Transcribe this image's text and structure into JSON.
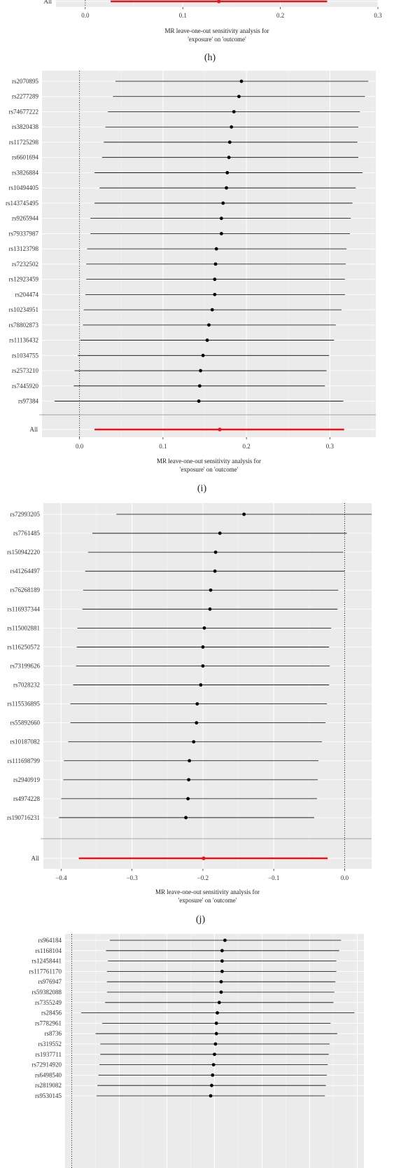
{
  "chart_data": [
    {
      "type": "forest",
      "caption": "(h)",
      "rows": [],
      "all": {
        "label": "All",
        "est": 0.137,
        "lo": 0.026,
        "hi": 0.248
      },
      "xlim": [
        -0.03,
        0.3
      ],
      "xticks": [
        0.0,
        0.1,
        0.2,
        0.3
      ],
      "xtick_labels": [
        "0.0",
        "0.1",
        "0.2",
        "0.3"
      ],
      "xlabel_line1": "MR leave-one-out sensitivity analysis for",
      "xlabel_line2": "'exposure' on 'outcome'",
      "grid": true
    },
    {
      "type": "forest",
      "caption": "(i)",
      "rows": [
        {
          "label": "rs2070895",
          "est": 0.194,
          "lo": 0.043,
          "hi": 0.346
        },
        {
          "label": "rs2277289",
          "est": 0.191,
          "lo": 0.04,
          "hi": 0.342
        },
        {
          "label": "rs74677222",
          "est": 0.185,
          "lo": 0.034,
          "hi": 0.336
        },
        {
          "label": "rs3820438",
          "est": 0.182,
          "lo": 0.031,
          "hi": 0.334
        },
        {
          "label": "rs11725298",
          "est": 0.18,
          "lo": 0.029,
          "hi": 0.333
        },
        {
          "label": "rs6601694",
          "est": 0.179,
          "lo": 0.027,
          "hi": 0.334
        },
        {
          "label": "rs3826884",
          "est": 0.177,
          "lo": 0.018,
          "hi": 0.339
        },
        {
          "label": "rs10494405",
          "est": 0.176,
          "lo": 0.024,
          "hi": 0.331
        },
        {
          "label": "rs143745495",
          "est": 0.172,
          "lo": 0.018,
          "hi": 0.327
        },
        {
          "label": "rs9265944",
          "est": 0.17,
          "lo": 0.013,
          "hi": 0.325
        },
        {
          "label": "rs79337987",
          "est": 0.17,
          "lo": 0.013,
          "hi": 0.324
        },
        {
          "label": "rs13123798",
          "est": 0.164,
          "lo": 0.009,
          "hi": 0.32
        },
        {
          "label": "rs7232502",
          "est": 0.163,
          "lo": 0.008,
          "hi": 0.319
        },
        {
          "label": "rs12923459",
          "est": 0.162,
          "lo": 0.008,
          "hi": 0.318
        },
        {
          "label": "rs204474",
          "est": 0.162,
          "lo": 0.007,
          "hi": 0.318
        },
        {
          "label": "rs10234951",
          "est": 0.159,
          "lo": 0.005,
          "hi": 0.314
        },
        {
          "label": "rs78802873",
          "est": 0.155,
          "lo": 0.004,
          "hi": 0.307
        },
        {
          "label": "rs11136432",
          "est": 0.153,
          "lo": 0.001,
          "hi": 0.305
        },
        {
          "label": "rs1034755",
          "est": 0.148,
          "lo": -0.002,
          "hi": 0.299
        },
        {
          "label": "rs2573210",
          "est": 0.145,
          "lo": -0.006,
          "hi": 0.296
        },
        {
          "label": "rs7445920",
          "est": 0.144,
          "lo": -0.007,
          "hi": 0.294
        },
        {
          "label": "rs97384",
          "est": 0.143,
          "lo": -0.03,
          "hi": 0.316
        }
      ],
      "all": {
        "label": "All",
        "est": 0.168,
        "lo": 0.018,
        "hi": 0.317
      },
      "xlim": [
        -0.045,
        0.355
      ],
      "xticks": [
        0.0,
        0.1,
        0.2,
        0.3
      ],
      "xtick_labels": [
        "0.0",
        "0.1",
        "0.2",
        "0.3"
      ],
      "xlabel_line1": "MR leave-one-out sensitivity analysis for",
      "xlabel_line2": "'exposure' on 'outcome'",
      "grid": true
    },
    {
      "type": "forest",
      "caption": "(j)",
      "rows": [
        {
          "label": "rs72993205",
          "est": -0.142,
          "lo": -0.322,
          "hi": 0.038
        },
        {
          "label": "rs7761485",
          "est": -0.176,
          "lo": -0.356,
          "hi": 0.003
        },
        {
          "label": "rs150942220",
          "est": -0.182,
          "lo": -0.362,
          "hi": -0.002
        },
        {
          "label": "rs41264497",
          "est": -0.183,
          "lo": -0.366,
          "hi": 0.0
        },
        {
          "label": "rs76268189",
          "est": -0.189,
          "lo": -0.369,
          "hi": -0.009
        },
        {
          "label": "rs116937344",
          "est": -0.19,
          "lo": -0.37,
          "hi": -0.01
        },
        {
          "label": "rs115002881",
          "est": -0.198,
          "lo": -0.377,
          "hi": -0.019
        },
        {
          "label": "rs116250572",
          "est": -0.2,
          "lo": -0.378,
          "hi": -0.022
        },
        {
          "label": "rs73199626",
          "est": -0.2,
          "lo": -0.379,
          "hi": -0.021
        },
        {
          "label": "rs7028232",
          "est": -0.203,
          "lo": -0.383,
          "hi": -0.022
        },
        {
          "label": "rs115536895",
          "est": -0.208,
          "lo": -0.387,
          "hi": -0.025
        },
        {
          "label": "rs55892660",
          "est": -0.209,
          "lo": -0.387,
          "hi": -0.027
        },
        {
          "label": "rs10187082",
          "est": -0.213,
          "lo": -0.39,
          "hi": -0.032
        },
        {
          "label": "rs111698799",
          "est": -0.219,
          "lo": -0.396,
          "hi": -0.037
        },
        {
          "label": "rs2940919",
          "est": -0.22,
          "lo": -0.397,
          "hi": -0.038
        },
        {
          "label": "rs4974228",
          "est": -0.221,
          "lo": -0.4,
          "hi": -0.039
        },
        {
          "label": "rs190716231",
          "est": -0.224,
          "lo": -0.403,
          "hi": -0.043
        }
      ],
      "all": {
        "label": "All",
        "est": -0.199,
        "lo": -0.375,
        "hi": -0.024
      },
      "xlim": [
        -0.425,
        0.038
      ],
      "xticks": [
        -0.4,
        -0.3,
        -0.2,
        -0.1,
        0.0
      ],
      "xtick_labels": [
        "−0.4",
        "−0.3",
        "−0.2",
        "−0.1",
        "0.0"
      ],
      "xlabel_line1": "MR leave-one-out sensitivity analysis for",
      "xlabel_line2": "'exposure' on 'outcome'",
      "grid": true
    },
    {
      "type": "forest",
      "caption": "",
      "rows": [
        {
          "label": "rs964184",
          "est": 0.161,
          "lo": 0.04,
          "hi": 0.283
        },
        {
          "label": "rs1168104",
          "est": 0.158,
          "lo": 0.036,
          "hi": 0.281
        },
        {
          "label": "rs12458441",
          "est": 0.158,
          "lo": 0.038,
          "hi": 0.278
        },
        {
          "label": "rs117761170",
          "est": 0.158,
          "lo": 0.037,
          "hi": 0.278
        },
        {
          "label": "rs976947",
          "est": 0.157,
          "lo": 0.037,
          "hi": 0.277
        },
        {
          "label": "rs59382088",
          "est": 0.157,
          "lo": 0.037,
          "hi": 0.276
        },
        {
          "label": "rs7355249",
          "est": 0.155,
          "lo": 0.035,
          "hi": 0.275
        },
        {
          "label": "rs28456",
          "est": 0.153,
          "lo": 0.01,
          "hi": 0.297
        },
        {
          "label": "rs7782961",
          "est": 0.152,
          "lo": 0.032,
          "hi": 0.272
        },
        {
          "label": "rs8736",
          "est": 0.152,
          "lo": 0.025,
          "hi": 0.279
        },
        {
          "label": "rs319552",
          "est": 0.151,
          "lo": 0.03,
          "hi": 0.271
        },
        {
          "label": "rs1937711",
          "est": 0.15,
          "lo": 0.03,
          "hi": 0.27
        },
        {
          "label": "rs72914920",
          "est": 0.149,
          "lo": 0.029,
          "hi": 0.269
        },
        {
          "label": "rs6498540",
          "est": 0.148,
          "lo": 0.028,
          "hi": 0.268
        },
        {
          "label": "rs2819082",
          "est": 0.147,
          "lo": 0.027,
          "hi": 0.267
        },
        {
          "label": "rs9530145",
          "est": 0.146,
          "lo": 0.026,
          "hi": 0.266
        }
      ],
      "all": null,
      "xlim": [
        -0.007,
        0.307
      ],
      "xticks": [],
      "xtick_labels": [],
      "xlabel_line1": "",
      "xlabel_line2": "",
      "grid": true
    }
  ],
  "colors": {
    "panel_bg": "#ebebeb",
    "grid_major": "#ffffff",
    "grid_minor": "#f4f4f4",
    "snp_line": "#000000",
    "all_line": "#e8141c",
    "point": "#000000",
    "text": "#333333"
  }
}
